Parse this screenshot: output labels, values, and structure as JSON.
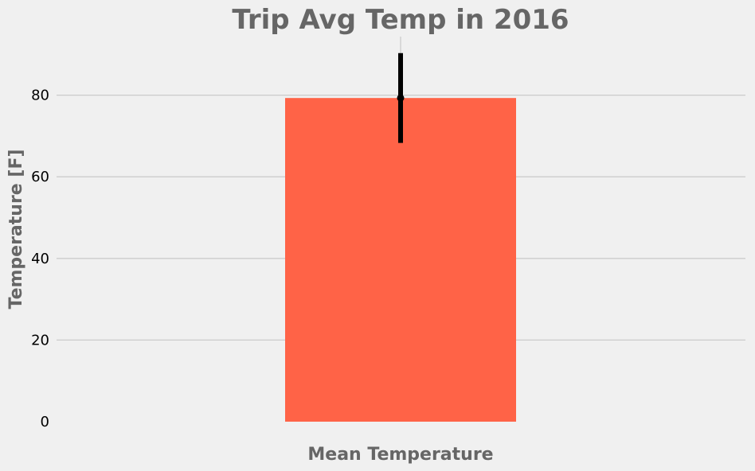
{
  "chart_data": {
    "type": "bar",
    "title": "Trip Avg Temp in 2016",
    "xlabel": "",
    "ylabel": "Temperature [F]",
    "categories": [
      "Mean Temperature"
    ],
    "values": [
      79.3
    ],
    "error_bars": [
      {
        "lower": 68.3,
        "upper": 90.3
      }
    ],
    "ylim": [
      0,
      94
    ],
    "yticks": [
      0,
      20,
      40,
      60,
      80
    ],
    "grid": "horizontal",
    "colors": {
      "bar": "#ff6347",
      "error_bar": "#000000",
      "grid": "#cbcbcb",
      "background": "#f0f0f0",
      "label_text": "#666666"
    }
  }
}
